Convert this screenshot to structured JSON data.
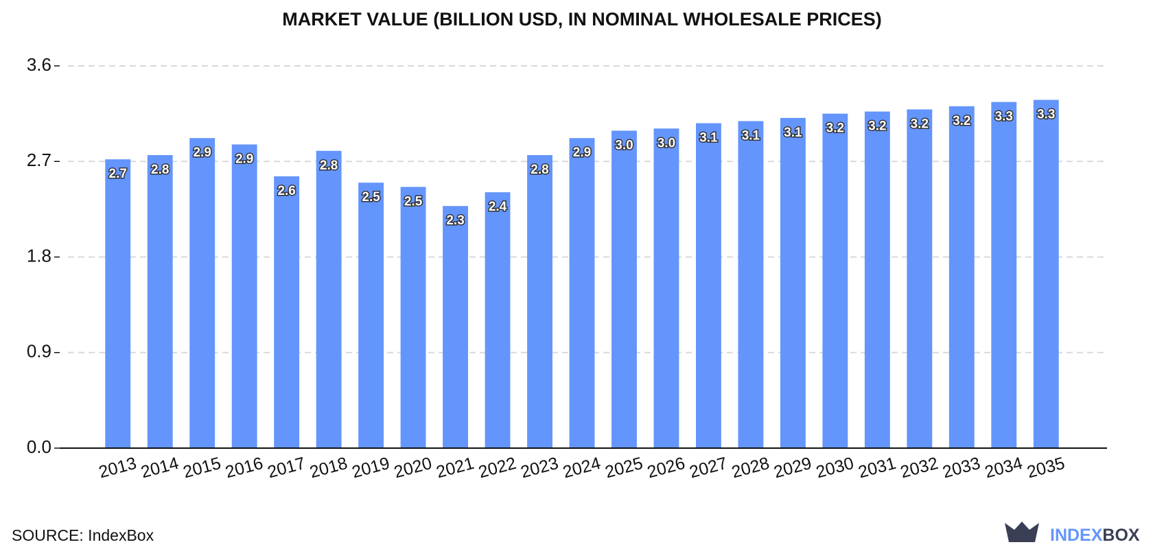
{
  "chart_data": {
    "type": "bar",
    "title": "MARKET VALUE (BILLION USD, IN NOMINAL WHOLESALE PRICES)",
    "categories": [
      "2013",
      "2014",
      "2015",
      "2016",
      "2017",
      "2018",
      "2019",
      "2020",
      "2021",
      "2022",
      "2023",
      "2024",
      "2025",
      "2026",
      "2027",
      "2028",
      "2029",
      "2030",
      "2031",
      "2032",
      "2033",
      "2034",
      "2035"
    ],
    "values": [
      2.72,
      2.76,
      2.92,
      2.86,
      2.56,
      2.8,
      2.5,
      2.46,
      2.28,
      2.41,
      2.76,
      2.92,
      2.99,
      3.01,
      3.06,
      3.08,
      3.11,
      3.15,
      3.17,
      3.19,
      3.22,
      3.26,
      3.28
    ],
    "value_labels": [
      "2.7",
      "2.8",
      "2.9",
      "2.9",
      "2.6",
      "2.8",
      "2.5",
      "2.5",
      "2.3",
      "2.4",
      "2.8",
      "2.9",
      "3.0",
      "3.0",
      "3.1",
      "3.1",
      "3.1",
      "3.2",
      "3.2",
      "3.2",
      "3.2",
      "3.3",
      "3.3"
    ],
    "color": "#6495fc",
    "ylim": [
      0,
      3.6
    ],
    "yticks": [
      {
        "value": 0,
        "label": "0.0"
      },
      0.9,
      1.8,
      2.7,
      3.6
    ],
    "grid": true,
    "source": "SOURCE: IndexBox",
    "logo": [
      "INDEX",
      "BOX"
    ]
  }
}
